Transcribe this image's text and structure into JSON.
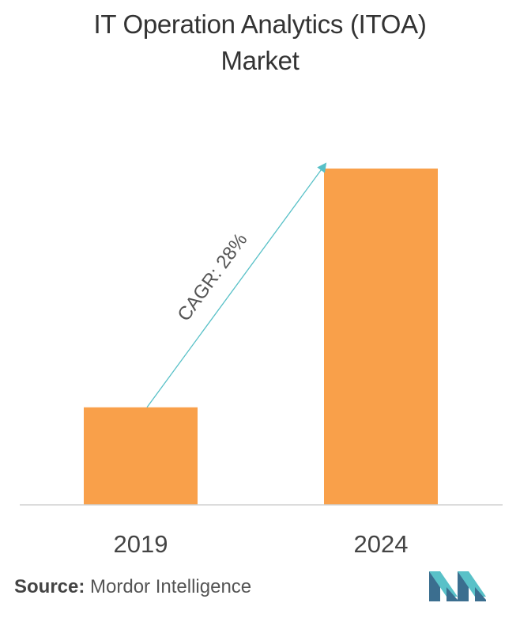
{
  "title": {
    "line1": "IT Operation Analytics (ITOA)",
    "line2": "Market"
  },
  "colors": {
    "bar": "#F9A04A",
    "arrow": "#57C0C7",
    "axis": "#D0D0D0",
    "logo_dark": "#3B6E8F",
    "logo_light": "#59C1C8"
  },
  "chart_data": {
    "type": "bar",
    "categories": [
      "2019",
      "2024"
    ],
    "values": [
      29,
      100
    ],
    "ylim": [
      0,
      100
    ],
    "annotation": "CAGR: 28%",
    "grid": false,
    "legend": "none"
  },
  "source": {
    "label": "Source:",
    "text": "Mordor Intelligence"
  },
  "logo": {
    "icon": "mordor-intelligence-logo-icon"
  }
}
